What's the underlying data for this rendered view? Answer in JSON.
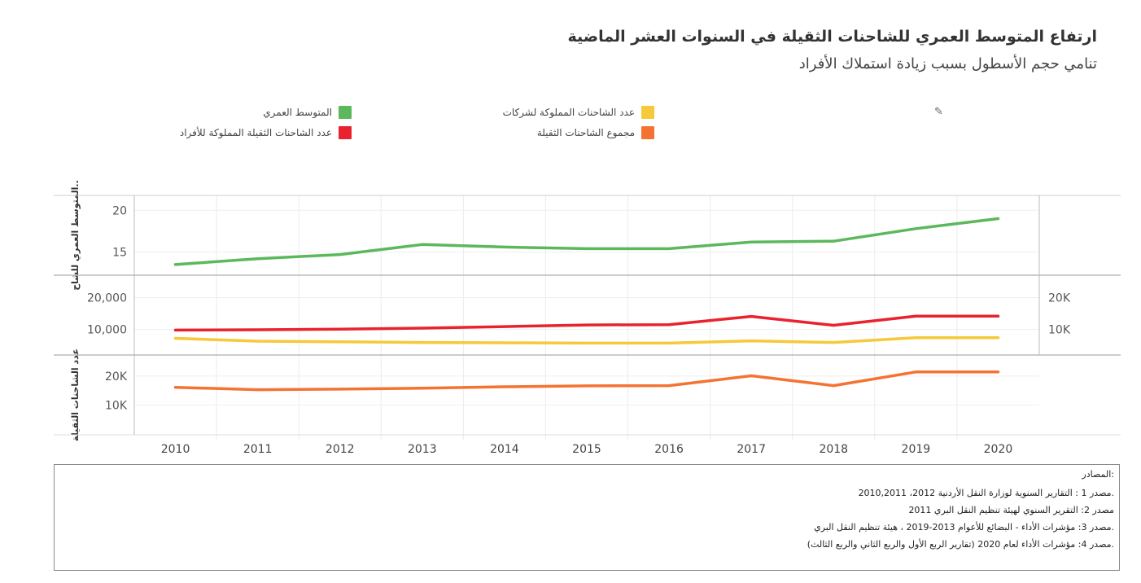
{
  "header": {
    "title": "ارتفاع المتوسط العمري للشاحنات الثقيلة في السنوات العشر الماضية",
    "subtitle": "تنامي حجم الأسطول بسبب زيادة استملاك الأفراد"
  },
  "legend": {
    "edit_icon": "pencil-icon",
    "items": [
      {
        "label": "المتوسط العمري",
        "color": "#5cb85c"
      },
      {
        "label": "عدد الشاحنات المملوكة لشركات",
        "color": "#f5c93a"
      },
      {
        "label": "عدد الشاحنات الثقيلة المملوكة للأفراد",
        "color": "#e8232e"
      },
      {
        "label": "مجموع الشاحنات الثقيلة",
        "color": "#f47332"
      }
    ]
  },
  "chart_data": {
    "type": "line",
    "x": [
      "2010",
      "2011",
      "2012",
      "2013",
      "2014",
      "2015",
      "2016",
      "2017",
      "2018",
      "2019",
      "2020"
    ],
    "panels": [
      {
        "ylabel": "المتوسط العمري للشاح..",
        "ylim": [
          13,
          21
        ],
        "yticks": [
          15,
          20
        ],
        "ytick_labels": [
          "15",
          "20"
        ],
        "right_ticks": [],
        "right_tick_labels": [],
        "series": [
          {
            "name": "المتوسط العمري",
            "color": "#5cb85c",
            "values": [
              13.5,
              14.2,
              14.7,
              15.9,
              15.6,
              15.4,
              15.4,
              16.2,
              16.3,
              17.8,
              19.0
            ]
          }
        ]
      },
      {
        "ylabel": "",
        "ylim": [
          4000,
          25000
        ],
        "yticks": [
          10000,
          20000
        ],
        "ytick_labels": [
          "10,000",
          "20,000"
        ],
        "right_ticks": [
          10000,
          20000
        ],
        "right_tick_labels": [
          "10K",
          "20K"
        ],
        "series": [
          {
            "name": "عدد الشاحنات الثقيلة المملوكة للأفراد",
            "color": "#e8232e",
            "values": [
              9800,
              9900,
              10100,
              10400,
              10900,
              11400,
              11500,
              14100,
              11300,
              14200,
              14200
            ]
          },
          {
            "name": "عدد الشاحنات المملوكة لشركات",
            "color": "#f5c93a",
            "values": [
              7200,
              6300,
              6100,
              5900,
              5800,
              5700,
              5700,
              6400,
              5900,
              7400,
              7400
            ]
          }
        ]
      },
      {
        "ylabel": "عدد الشاحنات الثقيلة",
        "ylim": [
          2000,
          25000
        ],
        "yticks": [
          10000,
          20000
        ],
        "ytick_labels": [
          "10K",
          "20K"
        ],
        "right_ticks": [],
        "right_tick_labels": [],
        "series": [
          {
            "name": "مجموع الشاحنات الثقيلة",
            "color": "#f47332",
            "values": [
              16100,
              15300,
              15500,
              15800,
              16300,
              16600,
              16700,
              20100,
              16700,
              21400,
              21400
            ]
          }
        ]
      }
    ],
    "grid": true
  },
  "sources": {
    "heading": ":المصادر",
    "lines": [
      ".مصدر 1 : التقارير السنوية لوزارة النقل الأردنية 2012، 2010,2011",
      "مصدر 2: التقرير السنوي لهيئة تنظيم النقل البري 2011",
      ".مصدر 3: مؤشرات الأداء - البضائع للأعوام 2013-2019 ، هيئة تنظيم النقل البري",
      ".مصدر 4: مؤشرات الأداء لعام 2020 (تقارير الربع الأول والربع الثاني والربع الثالث)"
    ]
  }
}
